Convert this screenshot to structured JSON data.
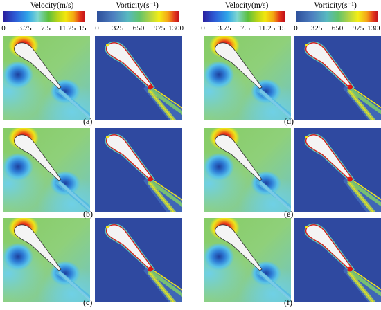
{
  "colorbars": {
    "velocity": {
      "title": "Velocity(m/s)",
      "ticks": [
        "0",
        "3.75",
        "7.5",
        "11.25",
        "15"
      ]
    },
    "vorticity": {
      "title": "Vorticity(s⁻¹)",
      "ticks": [
        "0",
        "325",
        "650",
        "975",
        "1300"
      ]
    }
  },
  "panel_labels": [
    "(a)",
    "(b)",
    "(c)",
    "(d)",
    "(e)",
    "(f)"
  ],
  "colors": {
    "vorticity_background": "#2f49a0",
    "velocity_freestream": "#7ec86a",
    "stagnation_red": "#d81616",
    "airfoil_fill": "#f4f4f4"
  }
}
